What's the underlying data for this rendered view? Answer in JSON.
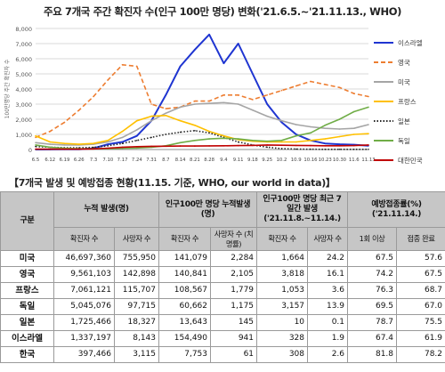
{
  "chart_title": "주요 7개국 주간 확진자 수(인구 100만 명당) 변화('21.6.5.~'21.11.13., WHO)",
  "chart_data": {
    "type": "line",
    "ylabel": "100만명당 주간 확진자 수",
    "ylim": [
      0,
      8000
    ],
    "yticks": [
      "0",
      "1,000",
      "2,000",
      "3,000",
      "4,000",
      "5,000",
      "6,000",
      "7,000",
      "8,000"
    ],
    "categories": [
      "6.5",
      "6.12",
      "6.19",
      "6.26",
      "7.3",
      "7.10",
      "7.17",
      "7.24",
      "7.31",
      "8.7",
      "8.14",
      "8.21",
      "8.28",
      "9.4",
      "9.11",
      "9.18",
      "9.25",
      "10.2",
      "10.9",
      "10.16",
      "10.23",
      "10.30",
      "11.6",
      "11.13"
    ],
    "grid": true,
    "legend_position": "right",
    "series": [
      {
        "name": "이스라엘",
        "color": "#1f35d1",
        "style": "solid",
        "values": [
          2,
          5,
          10,
          20,
          80,
          350,
          500,
          900,
          1900,
          3600,
          5500,
          6600,
          7600,
          5700,
          7000,
          5000,
          3000,
          1800,
          1000,
          600,
          400,
          350,
          320,
          250
        ]
      },
      {
        "name": "영국",
        "color": "#ed7d31",
        "style": "dashed",
        "values": [
          800,
          1200,
          1800,
          2600,
          3500,
          4600,
          5600,
          5500,
          3000,
          2700,
          2800,
          3200,
          3200,
          3600,
          3600,
          3300,
          3600,
          3900,
          4200,
          4500,
          4300,
          4100,
          3700,
          3500
        ]
      },
      {
        "name": "미국",
        "color": "#a5a5a5",
        "style": "solid",
        "values": [
          450,
          350,
          300,
          300,
          350,
          500,
          800,
          1300,
          1900,
          2400,
          2800,
          3000,
          3050,
          3100,
          3000,
          2600,
          2200,
          1900,
          1650,
          1500,
          1400,
          1350,
          1400,
          1650
        ]
      },
      {
        "name": "프랑스",
        "color": "#ffc000",
        "style": "solid",
        "values": [
          900,
          500,
          400,
          350,
          400,
          600,
          1200,
          1900,
          2200,
          2250,
          1900,
          1600,
          1200,
          900,
          650,
          550,
          500,
          500,
          500,
          600,
          700,
          850,
          1000,
          1050
        ]
      },
      {
        "name": "일본",
        "color": "#262626",
        "style": "dotted",
        "values": [
          200,
          150,
          120,
          110,
          140,
          250,
          400,
          600,
          800,
          1000,
          1150,
          1250,
          1100,
          800,
          500,
          300,
          150,
          60,
          30,
          20,
          10,
          10,
          10,
          10
        ]
      },
      {
        "name": "독일",
        "color": "#70ad47",
        "style": "solid",
        "values": [
          300,
          150,
          80,
          50,
          50,
          60,
          80,
          100,
          150,
          250,
          450,
          600,
          700,
          750,
          700,
          600,
          550,
          600,
          900,
          1100,
          1600,
          2000,
          2500,
          2800
        ]
      },
      {
        "name": "대한민국",
        "color": "#c00000",
        "style": "solid",
        "values": [
          25,
          25,
          25,
          25,
          40,
          90,
          150,
          190,
          210,
          220,
          230,
          230,
          240,
          250,
          260,
          270,
          300,
          280,
          270,
          260,
          250,
          250,
          260,
          300
        ]
      }
    ]
  },
  "table_title": "【7개국 발생 및 예방접종 현황(11.15. 기준, WHO, our world in data)】",
  "table": {
    "col_country": "구분",
    "group_cum": "누적 발생(명)",
    "group_per_million": "인구100만 명당 누적발생(명)",
    "group_7day": "인구100만 명당 최근 7일간 발생 ('21.11.8.~11.14.)",
    "group_vax": "예방접종률(%) ('21.11.14.)",
    "sub_headers": [
      "확진자 수",
      "사망자 수",
      "확진자 수",
      "사망자 수 (치명률)",
      "확진자 수",
      "사망자 수",
      "1회 이상",
      "접종 완료"
    ],
    "rows": [
      {
        "country": "미국",
        "cells": [
          "46,697,360",
          "755,950",
          "141,079",
          "2,284",
          "1,664",
          "24.2",
          "67.5",
          "57.6"
        ]
      },
      {
        "country": "영국",
        "cells": [
          "9,561,103",
          "142,898",
          "140,841",
          "2,105",
          "3,818",
          "16.1",
          "74.2",
          "67.5"
        ]
      },
      {
        "country": "프랑스",
        "cells": [
          "7,061,121",
          "115,707",
          "108,567",
          "1,779",
          "1,053",
          "3.6",
          "76.3",
          "68.7"
        ]
      },
      {
        "country": "독일",
        "cells": [
          "5,045,076",
          "97,715",
          "60,662",
          "1,175",
          "3,157",
          "13.9",
          "69.5",
          "67.0"
        ]
      },
      {
        "country": "일본",
        "cells": [
          "1,725,466",
          "18,327",
          "13,643",
          "145",
          "10",
          "0.1",
          "78.7",
          "75.5"
        ]
      },
      {
        "country": "이스라엘",
        "cells": [
          "1,337,197",
          "8,143",
          "154,490",
          "941",
          "328",
          "1.9",
          "67.4",
          "61.9"
        ]
      },
      {
        "country": "한국",
        "cells": [
          "397,466",
          "3,115",
          "7,753",
          "61",
          "308",
          "2.6",
          "81.8",
          "78.2"
        ]
      }
    ]
  }
}
